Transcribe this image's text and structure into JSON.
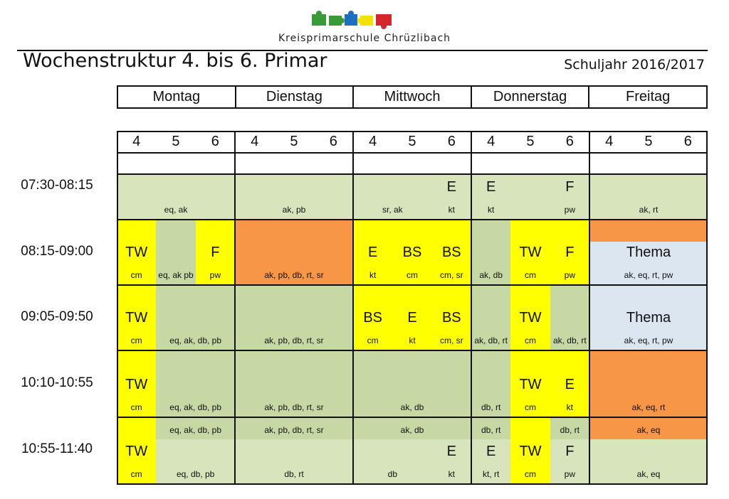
{
  "header": {
    "school_name": "Kreisprimarschule Chrüzlibach",
    "title": "Wochenstruktur 4. bis 6. Primar",
    "school_year": "Schuljahr 2016/2017"
  },
  "colors": {
    "green_dark": "#c6d9a4",
    "green_light": "#d8e4bc",
    "yellow": "#ffff00",
    "orange": "#f79646",
    "blue": "#dce6f1"
  },
  "days": [
    "Montag",
    "Dienstag",
    "Mittwoch",
    "Donnerstag",
    "Freitag"
  ],
  "grades": [
    "4",
    "5",
    "6"
  ],
  "times": [
    "07:30-08:15",
    "08:15-09:00",
    "09:05-09:50",
    "10:10-10:55",
    "10:55-11:40"
  ],
  "cells": [
    {
      "c": 0,
      "cs": 3,
      "r": [
        246,
        308
      ],
      "bg": "green_light",
      "small": "eq, ak"
    },
    {
      "c": 3,
      "cs": 3,
      "r": [
        246,
        308
      ],
      "bg": "green_light",
      "small": "ak, pb"
    },
    {
      "c": 6,
      "cs": 2,
      "r": [
        246,
        308
      ],
      "bg": "green_light",
      "small": "sr, ak"
    },
    {
      "c": 8,
      "cs": 1,
      "r": [
        246,
        308
      ],
      "bg": "green_light",
      "big": "E",
      "small": "kt"
    },
    {
      "c": 9,
      "cs": 1,
      "r": [
        246,
        308
      ],
      "bg": "green_light",
      "big": "E",
      "small": "kt"
    },
    {
      "c": 10,
      "cs": 1,
      "r": [
        246,
        308
      ],
      "bg": "green_light"
    },
    {
      "c": 11,
      "cs": 1,
      "r": [
        246,
        308
      ],
      "bg": "green_light",
      "big": "F",
      "small": "pw"
    },
    {
      "c": 12,
      "cs": 3,
      "r": [
        246,
        308
      ],
      "bg": "green_light",
      "small": "ak, rt"
    },
    {
      "c": 0,
      "cs": 1,
      "r": [
        310,
        400
      ],
      "bg": "yellow",
      "big": "TW",
      "small": "cm"
    },
    {
      "c": 1,
      "cs": 1,
      "r": [
        310,
        400
      ],
      "bg": "green_dark",
      "small": "eq, ak pb"
    },
    {
      "c": 2,
      "cs": 1,
      "r": [
        310,
        400
      ],
      "bg": "yellow",
      "big": "F",
      "small": "pw"
    },
    {
      "c": 3,
      "cs": 3,
      "r": [
        310,
        400
      ],
      "bg": "orange",
      "small": "ak, pb, db, rt, sr"
    },
    {
      "c": 6,
      "cs": 1,
      "r": [
        310,
        400
      ],
      "bg": "yellow",
      "big": "E",
      "small": "kt"
    },
    {
      "c": 7,
      "cs": 1,
      "r": [
        310,
        400
      ],
      "bg": "yellow",
      "big": "BS",
      "small": "cm"
    },
    {
      "c": 8,
      "cs": 1,
      "r": [
        310,
        400
      ],
      "bg": "yellow",
      "big": "BS",
      "small": "cm, sr"
    },
    {
      "c": 9,
      "cs": 1,
      "r": [
        310,
        400
      ],
      "bg": "green_dark",
      "small": "ak, db"
    },
    {
      "c": 10,
      "cs": 1,
      "r": [
        310,
        400
      ],
      "bg": "yellow",
      "big": "TW",
      "small": "cm"
    },
    {
      "c": 11,
      "cs": 1,
      "r": [
        310,
        400
      ],
      "bg": "yellow",
      "big": "F",
      "small": "pw"
    },
    {
      "c": 12,
      "cs": 3,
      "r": [
        310,
        340
      ],
      "bg": "orange"
    },
    {
      "c": 12,
      "cs": 3,
      "r": [
        340,
        400
      ],
      "bg": "blue",
      "big": "Thema",
      "small": "ak, eq, rt, pw"
    },
    {
      "c": 0,
      "cs": 1,
      "r": [
        402,
        492
      ],
      "bg": "yellow",
      "big": "TW",
      "small": "cm"
    },
    {
      "c": 1,
      "cs": 2,
      "r": [
        402,
        492
      ],
      "bg": "green_dark",
      "small": "eq, ak, db, pb"
    },
    {
      "c": 3,
      "cs": 3,
      "r": [
        402,
        492
      ],
      "bg": "green_dark",
      "small": "ak, pb, db, rt, sr"
    },
    {
      "c": 6,
      "cs": 1,
      "r": [
        402,
        492
      ],
      "bg": "yellow",
      "big": "BS",
      "small": "cm"
    },
    {
      "c": 7,
      "cs": 1,
      "r": [
        402,
        492
      ],
      "bg": "yellow",
      "big": "E",
      "small": "kt"
    },
    {
      "c": 8,
      "cs": 1,
      "r": [
        402,
        492
      ],
      "bg": "yellow",
      "big": "BS",
      "small": "cm, sr"
    },
    {
      "c": 9,
      "cs": 1,
      "r": [
        402,
        492
      ],
      "bg": "green_dark",
      "small": "ak, db, rt"
    },
    {
      "c": 10,
      "cs": 1,
      "r": [
        402,
        492
      ],
      "bg": "yellow",
      "big": "TW",
      "small": "cm"
    },
    {
      "c": 11,
      "cs": 1,
      "r": [
        402,
        492
      ],
      "bg": "green_dark",
      "small": "ak, db, rt"
    },
    {
      "c": 12,
      "cs": 3,
      "r": [
        402,
        492
      ],
      "bg": "blue",
      "big": "Thema",
      "small": "ak, eq, rt, pw"
    },
    {
      "c": 0,
      "cs": 1,
      "r": [
        494,
        586
      ],
      "bg": "yellow",
      "big": "TW",
      "small": "cm"
    },
    {
      "c": 1,
      "cs": 2,
      "r": [
        494,
        586
      ],
      "bg": "green_dark",
      "small": "eq, ak, db, pb"
    },
    {
      "c": 3,
      "cs": 3,
      "r": [
        494,
        586
      ],
      "bg": "green_dark",
      "small": "ak, pb, db, rt, sr"
    },
    {
      "c": 6,
      "cs": 3,
      "r": [
        494,
        586
      ],
      "bg": "green_dark",
      "small": "ak, db"
    },
    {
      "c": 9,
      "cs": 1,
      "r": [
        494,
        586
      ],
      "bg": "green_dark",
      "small": "db, rt"
    },
    {
      "c": 10,
      "cs": 1,
      "r": [
        494,
        586
      ],
      "bg": "yellow",
      "big": "TW",
      "small": "cm"
    },
    {
      "c": 11,
      "cs": 1,
      "r": [
        494,
        586
      ],
      "bg": "yellow",
      "big": "E",
      "small": "kt"
    },
    {
      "c": 12,
      "cs": 3,
      "r": [
        494,
        586
      ],
      "bg": "orange",
      "small": "ak, eq, rt"
    },
    {
      "c": 0,
      "cs": 1,
      "r": [
        588,
        680
      ],
      "bg": "yellow",
      "big": "TW",
      "small": "cm"
    },
    {
      "c": 1,
      "cs": 2,
      "r": [
        588,
        618
      ],
      "bg": "green_dark",
      "small": "eq, ak, db, pb"
    },
    {
      "c": 1,
      "cs": 2,
      "r": [
        618,
        680
      ],
      "bg": "green_light",
      "small": "eq, db, pb"
    },
    {
      "c": 3,
      "cs": 3,
      "r": [
        588,
        618
      ],
      "bg": "green_dark",
      "small": "ak, pb, db, rt, sr"
    },
    {
      "c": 3,
      "cs": 3,
      "r": [
        618,
        680
      ],
      "bg": "green_light",
      "small": "db, rt"
    },
    {
      "c": 6,
      "cs": 3,
      "r": [
        588,
        618
      ],
      "bg": "green_dark",
      "small": "ak, db"
    },
    {
      "c": 6,
      "cs": 2,
      "r": [
        618,
        680
      ],
      "bg": "green_light",
      "small": "db"
    },
    {
      "c": 8,
      "cs": 1,
      "r": [
        618,
        680
      ],
      "bg": "green_light",
      "big": "E",
      "small": "kt"
    },
    {
      "c": 9,
      "cs": 1,
      "r": [
        588,
        618
      ],
      "bg": "green_dark",
      "small": "db, rt"
    },
    {
      "c": 9,
      "cs": 1,
      "r": [
        618,
        680
      ],
      "bg": "green_light",
      "big": "E",
      "small": "kt, rt"
    },
    {
      "c": 10,
      "cs": 1,
      "r": [
        588,
        680
      ],
      "bg": "yellow",
      "big": "TW",
      "small": "cm"
    },
    {
      "c": 11,
      "cs": 1,
      "r": [
        588,
        618
      ],
      "bg": "green_dark",
      "small": "db, rt"
    },
    {
      "c": 11,
      "cs": 1,
      "r": [
        618,
        680
      ],
      "bg": "green_light",
      "big": "F",
      "small": "pw"
    },
    {
      "c": 12,
      "cs": 3,
      "r": [
        588,
        618
      ],
      "bg": "orange",
      "small": "ak, eq"
    },
    {
      "c": 12,
      "cs": 3,
      "r": [
        618,
        680
      ],
      "bg": "green_light",
      "small": "ak, eq"
    }
  ]
}
